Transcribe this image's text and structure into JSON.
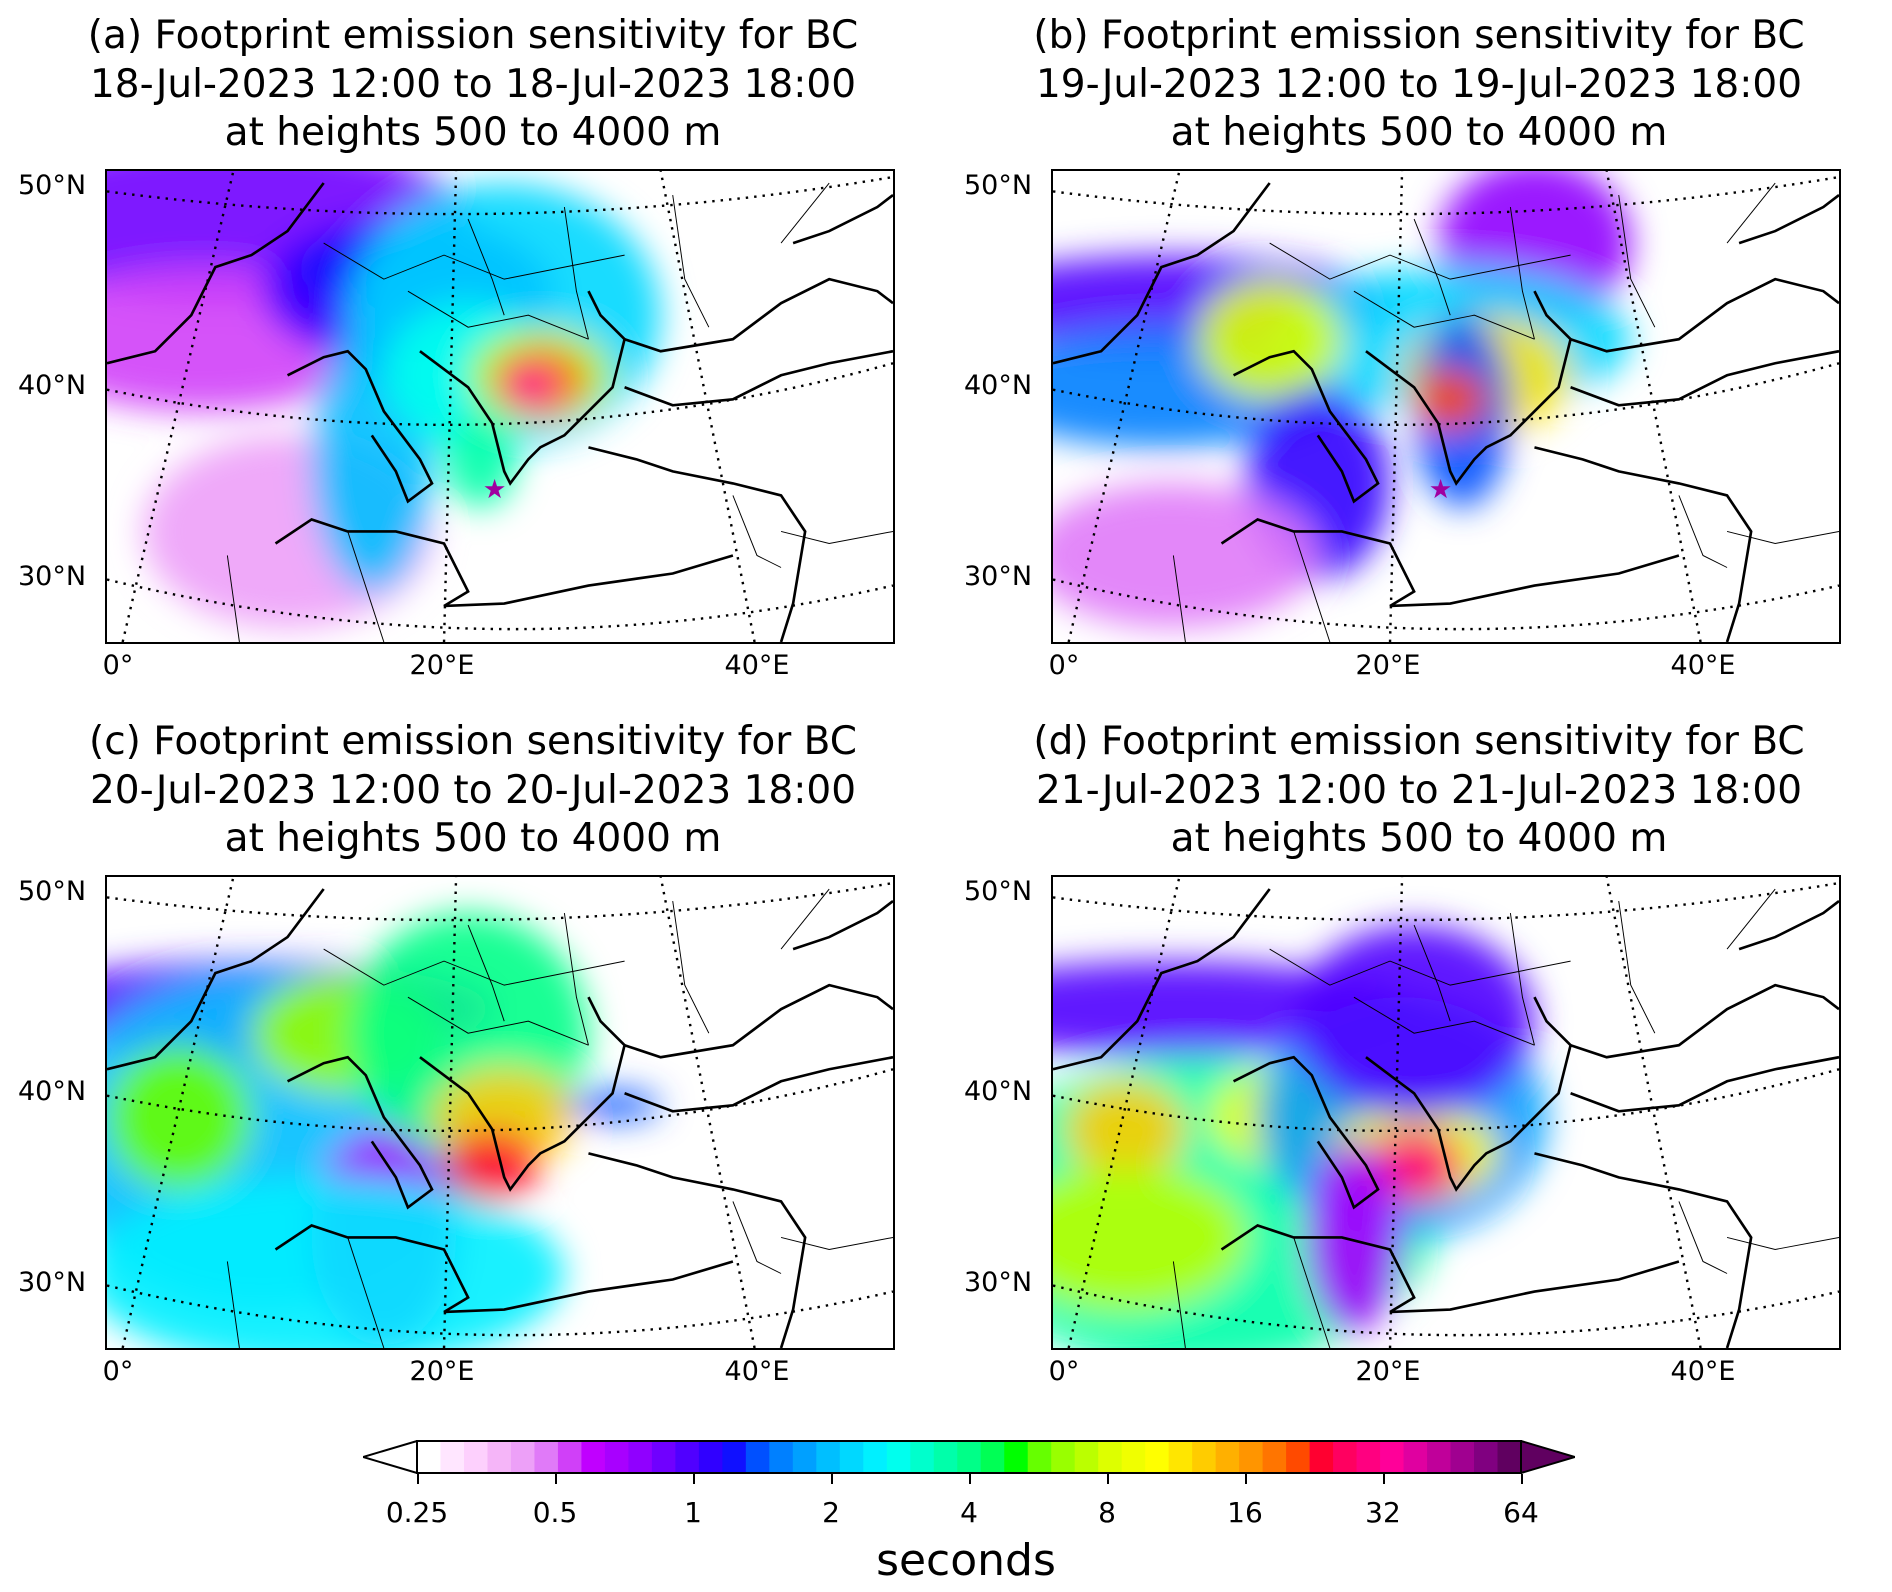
{
  "chart_data": {
    "type": "heatmap",
    "panels": [
      {
        "id": "a",
        "title": [
          "(a) Footprint emission sensitivity for BC",
          "18-Jul-2023 12:00 to 18-Jul-2023 18:00",
          "at heights 500 to 4000 m"
        ]
      },
      {
        "id": "b",
        "title": [
          "(b) Footprint emission sensitivity for BC",
          "19-Jul-2023 12:00 to 19-Jul-2023 18:00",
          "at heights 500 to 4000 m"
        ]
      },
      {
        "id": "c",
        "title": [
          "(c) Footprint emission sensitivity for BC",
          "20-Jul-2023 12:00 to 20-Jul-2023 18:00",
          "at heights 500 to 4000 m"
        ]
      },
      {
        "id": "d",
        "title": [
          "(d) Footprint emission sensitivity for BC",
          "21-Jul-2023 12:00 to 21-Jul-2023 18:00",
          "at heights 500 to 4000 m"
        ]
      }
    ],
    "lat_ticks": [
      "50°N",
      "40°N",
      "30°N"
    ],
    "lon_ticks": [
      "0°",
      "20°E",
      "40°E"
    ],
    "colorbar": {
      "label": "seconds",
      "ticks": [
        "0.25",
        "0.5",
        "1",
        "2",
        "4",
        "8",
        "16",
        "32",
        "64"
      ],
      "scale": "log2",
      "range": [
        0.25,
        64
      ],
      "extend": "both",
      "colors": [
        "#ffffff",
        "#ffe6ff",
        "#fdd0fd",
        "#f5b5f8",
        "#eda0f8",
        "#e07af8",
        "#d040f8",
        "#c000ff",
        "#a800ff",
        "#9000ff",
        "#7000ff",
        "#5000ff",
        "#3000ff",
        "#1010ff",
        "#0050ff",
        "#0080ff",
        "#00a0ff",
        "#00bfff",
        "#00d8ff",
        "#00f0ff",
        "#00ffee",
        "#00ffcc",
        "#00ffaa",
        "#00ff88",
        "#00ff55",
        "#00ff00",
        "#66ff00",
        "#99ff00",
        "#bbff00",
        "#ddff00",
        "#f0ff00",
        "#ffff00",
        "#ffe600",
        "#ffcc00",
        "#ffb000",
        "#ff9500",
        "#ff7500",
        "#ff4a00",
        "#ff0030",
        "#ff0060",
        "#ff0080",
        "#ff0099",
        "#e000a0",
        "#c0009a",
        "#a00090",
        "#800080",
        "#600060"
      ]
    }
  }
}
